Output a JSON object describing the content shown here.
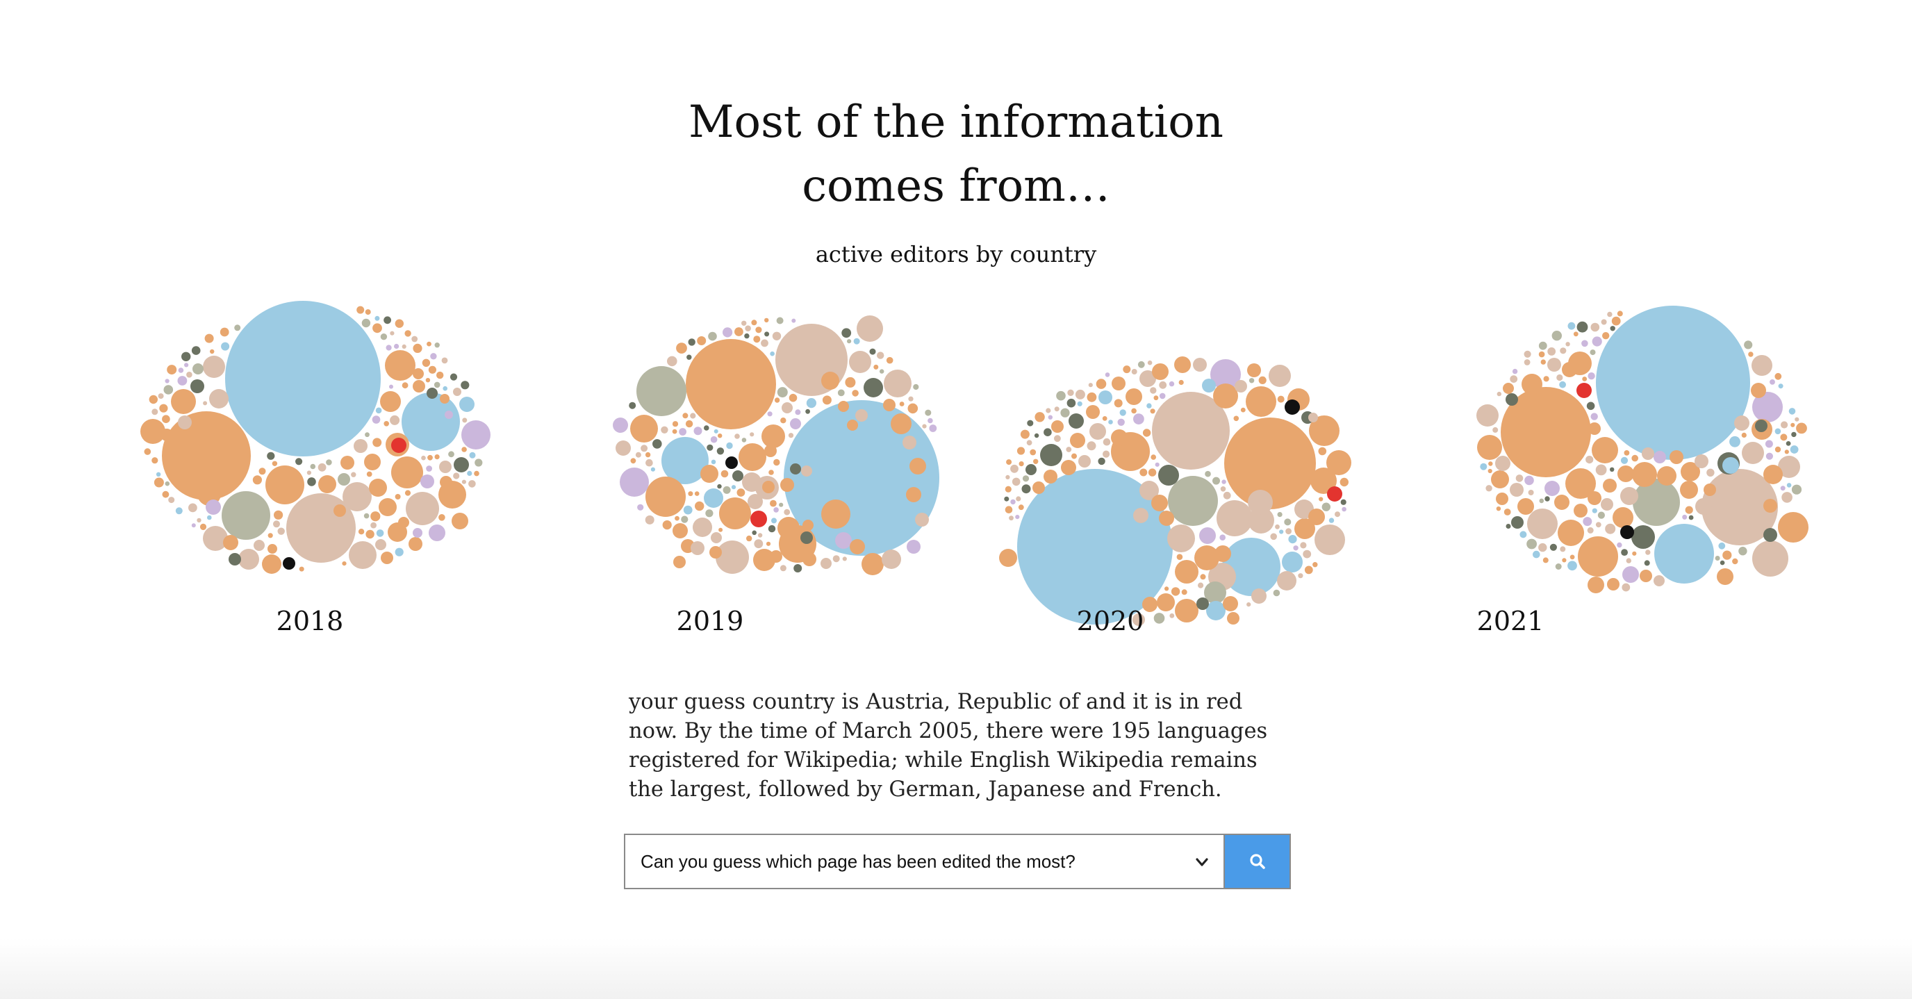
{
  "header": {
    "title_line1": "Most of the information",
    "title_line2": "comes from…",
    "subtitle": "active editors by country"
  },
  "story": {
    "text": "your guess country is Austria, Republic of and it is in red now. By the time of March 2005, there were 195 languages registered for Wikipedia; while English Wikipedia remains the largest, followed by German, Japanese and French."
  },
  "search": {
    "selected_option": "Can you guess which page has been edited the most?",
    "button_icon": "search-icon"
  },
  "colors": {
    "blue": "#9ccbe3",
    "orange": "#e8a66e",
    "tan": "#dbbfad",
    "gray_green": "#b5b7a3",
    "dark_gray": "#6b7262",
    "lilac": "#cbb7dc",
    "red": "#e3342f",
    "black": "#111111",
    "button_blue": "#4a9be8"
  },
  "chart_data": {
    "type": "bubble-pack",
    "title": "Most of the information comes from…",
    "subtitle": "active editors by country",
    "highlight": "Austria, Republic of",
    "years": [
      "2018",
      "2019",
      "2020",
      "2021"
    ]
  }
}
